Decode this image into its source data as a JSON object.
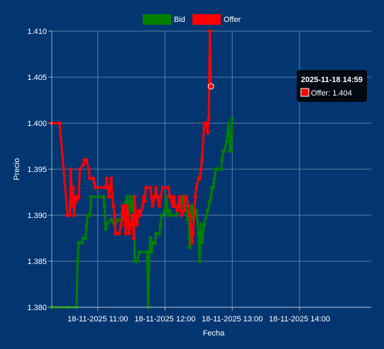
{
  "chart_data": {
    "type": "line",
    "xlabel": "Fecha",
    "ylabel": "Precio",
    "ylim": [
      1.38,
      1.41
    ],
    "yticks": [
      "1.380",
      "1.385",
      "1.390",
      "1.395",
      "1.400",
      "1.405",
      "1.410"
    ],
    "xrange": [
      "10:19",
      "15:04"
    ],
    "xticks": [
      {
        "time": "11:00",
        "label": "18-11-2025 11:00"
      },
      {
        "time": "12:00",
        "label": "18-11-2025 12:00"
      },
      {
        "time": "13:00",
        "label": "18-11-2025 13:00"
      },
      {
        "time": "14:00",
        "label": "18-11-2025 14:00"
      }
    ],
    "legend": {
      "position": "top"
    },
    "grid": true,
    "series": [
      {
        "name": "Bid",
        "color": "#008000",
        "points": [
          [
            "10:19",
            1.38
          ],
          [
            "10:33",
            1.38
          ],
          [
            "10:41",
            1.38
          ],
          [
            "10:42",
            1.385
          ],
          [
            "10:43",
            1.387
          ],
          [
            "10:46",
            1.387
          ],
          [
            "10:47",
            1.3875
          ],
          [
            "10:49",
            1.3875
          ],
          [
            "10:50",
            1.389
          ],
          [
            "10:51",
            1.39
          ],
          [
            "10:53",
            1.39
          ],
          [
            "10:54",
            1.392
          ],
          [
            "11:05",
            1.392
          ],
          [
            "11:06",
            1.391
          ],
          [
            "11:07",
            1.3885
          ],
          [
            "11:08",
            1.389
          ],
          [
            "11:12",
            1.3895
          ],
          [
            "11:15",
            1.389
          ],
          [
            "11:18",
            1.3895
          ],
          [
            "11:22",
            1.3895
          ],
          [
            "11:24",
            1.391
          ],
          [
            "11:26",
            1.392
          ],
          [
            "11:27",
            1.391
          ],
          [
            "11:28",
            1.39
          ],
          [
            "11:29",
            1.392
          ],
          [
            "11:31",
            1.3905
          ],
          [
            "11:32",
            1.392
          ],
          [
            "11:33",
            1.385
          ],
          [
            "11:35",
            1.385
          ],
          [
            "11:37",
            1.386
          ],
          [
            "11:44",
            1.386
          ],
          [
            "11:45",
            1.38
          ],
          [
            "11:46",
            1.386
          ],
          [
            "11:47",
            1.3875
          ],
          [
            "11:48",
            1.386
          ],
          [
            "11:49",
            1.387
          ],
          [
            "11:51",
            1.387
          ],
          [
            "11:52",
            1.388
          ],
          [
            "11:55",
            1.388
          ],
          [
            "11:56",
            1.389
          ],
          [
            "11:57",
            1.39
          ],
          [
            "11:58",
            1.39
          ],
          [
            "12:00",
            1.3905
          ],
          [
            "12:01",
            1.392
          ],
          [
            "12:02",
            1.3905
          ],
          [
            "12:03",
            1.39
          ],
          [
            "12:04",
            1.3905
          ],
          [
            "12:05",
            1.39
          ],
          [
            "12:10",
            1.39
          ],
          [
            "12:11",
            1.3905
          ],
          [
            "12:13",
            1.391
          ],
          [
            "12:14",
            1.391
          ],
          [
            "12:15",
            1.392
          ],
          [
            "12:16",
            1.392
          ],
          [
            "12:17",
            1.3905
          ],
          [
            "12:18",
            1.391
          ],
          [
            "12:19",
            1.3905
          ],
          [
            "12:20",
            1.3895
          ],
          [
            "12:21",
            1.3905
          ],
          [
            "12:22",
            1.3865
          ],
          [
            "12:23",
            1.3905
          ],
          [
            "12:24",
            1.391
          ],
          [
            "12:25",
            1.3895
          ],
          [
            "12:26",
            1.3905
          ],
          [
            "12:27",
            1.39
          ],
          [
            "12:28",
            1.3905
          ],
          [
            "12:30",
            1.388
          ],
          [
            "12:31",
            1.385
          ],
          [
            "12:32",
            1.389
          ],
          [
            "12:33",
            1.387
          ],
          [
            "12:35",
            1.389
          ],
          [
            "12:37",
            1.39
          ],
          [
            "12:38",
            1.3905
          ],
          [
            "12:40",
            1.3915
          ],
          [
            "12:41",
            1.392
          ],
          [
            "12:42",
            1.393
          ],
          [
            "12:43",
            1.393
          ],
          [
            "12:44",
            1.394
          ],
          [
            "12:45",
            1.395
          ],
          [
            "12:46",
            1.395
          ],
          [
            "12:50",
            1.395
          ],
          [
            "12:51",
            1.396
          ],
          [
            "12:52",
            1.397
          ],
          [
            "12:53",
            1.397
          ],
          [
            "12:55",
            1.398
          ],
          [
            "12:56",
            1.399
          ],
          [
            "12:57",
            1.4
          ],
          [
            "12:58",
            1.397
          ],
          [
            "12:59",
            1.397
          ],
          [
            "13:00",
            1.4005
          ]
        ]
      },
      {
        "name": "Offer",
        "color": "#ff0000",
        "points": [
          [
            "10:19",
            1.4
          ],
          [
            "10:26",
            1.4
          ],
          [
            "10:33",
            1.39
          ],
          [
            "10:35",
            1.39
          ],
          [
            "10:36",
            1.395
          ],
          [
            "10:37",
            1.391
          ],
          [
            "10:38",
            1.393
          ],
          [
            "10:39",
            1.39
          ],
          [
            "10:40",
            1.392
          ],
          [
            "10:41",
            1.3915
          ],
          [
            "10:43",
            1.392
          ],
          [
            "10:44",
            1.395
          ],
          [
            "10:47",
            1.3955
          ],
          [
            "10:48",
            1.396
          ],
          [
            "10:50",
            1.396
          ],
          [
            "10:52",
            1.395
          ],
          [
            "10:53",
            1.394
          ],
          [
            "10:56",
            1.394
          ],
          [
            "10:57",
            1.3935
          ],
          [
            "10:58",
            1.393
          ],
          [
            "11:07",
            1.393
          ],
          [
            "11:08",
            1.394
          ],
          [
            "11:09",
            1.393
          ],
          [
            "11:10",
            1.392
          ],
          [
            "11:11",
            1.393
          ],
          [
            "11:12",
            1.394
          ],
          [
            "11:13",
            1.392
          ],
          [
            "11:14",
            1.391
          ],
          [
            "11:15",
            1.39
          ],
          [
            "11:16",
            1.388
          ],
          [
            "11:19",
            1.388
          ],
          [
            "11:21",
            1.389
          ],
          [
            "11:22",
            1.391
          ],
          [
            "11:23",
            1.391
          ],
          [
            "11:24",
            1.39
          ],
          [
            "11:25",
            1.388
          ],
          [
            "11:26",
            1.391
          ],
          [
            "11:27",
            1.39
          ],
          [
            "11:28",
            1.388
          ],
          [
            "11:29",
            1.389
          ],
          [
            "11:31",
            1.39
          ],
          [
            "11:32",
            1.3875
          ],
          [
            "11:33",
            1.392
          ],
          [
            "11:34",
            1.39
          ],
          [
            "11:35",
            1.389
          ],
          [
            "11:36",
            1.39
          ],
          [
            "11:37",
            1.3905
          ],
          [
            "11:38",
            1.39
          ],
          [
            "11:40",
            1.391
          ],
          [
            "11:41",
            1.392
          ],
          [
            "11:42",
            1.3915
          ],
          [
            "11:43",
            1.393
          ],
          [
            "11:47",
            1.393
          ],
          [
            "11:48",
            1.392
          ],
          [
            "11:49",
            1.391
          ],
          [
            "11:51",
            1.392
          ],
          [
            "11:52",
            1.393
          ],
          [
            "11:53",
            1.392
          ],
          [
            "11:55",
            1.391
          ],
          [
            "11:56",
            1.392
          ],
          [
            "11:58",
            1.393
          ],
          [
            "12:03",
            1.393
          ],
          [
            "12:04",
            1.392
          ],
          [
            "12:05",
            1.392
          ],
          [
            "12:06",
            1.3915
          ],
          [
            "12:07",
            1.391
          ],
          [
            "12:08",
            1.392
          ],
          [
            "12:09",
            1.391
          ],
          [
            "12:11",
            1.3905
          ],
          [
            "12:12",
            1.391
          ],
          [
            "12:13",
            1.392
          ],
          [
            "12:14",
            1.391
          ],
          [
            "12:15",
            1.39
          ],
          [
            "12:17",
            1.3905
          ],
          [
            "12:18",
            1.392
          ],
          [
            "12:19",
            1.392
          ],
          [
            "12:21",
            1.391
          ],
          [
            "12:22",
            1.39
          ],
          [
            "12:23",
            1.389
          ],
          [
            "12:24",
            1.387
          ],
          [
            "12:25",
            1.388
          ],
          [
            "12:27",
            1.392
          ],
          [
            "12:28",
            1.393
          ],
          [
            "12:30",
            1.394
          ],
          [
            "12:31",
            1.394
          ],
          [
            "12:32",
            1.395
          ],
          [
            "12:33",
            1.396
          ],
          [
            "12:35",
            1.4
          ],
          [
            "12:37",
            1.4
          ],
          [
            "12:38",
            1.399
          ],
          [
            "12:39",
            1.4005
          ],
          [
            "12:40",
            1.41
          ],
          [
            "12:41",
            1.404
          ]
        ]
      }
    ],
    "tooltip": {
      "title": "2025-11-18 14:59",
      "series": "Offer",
      "label": "Offer: 1.404",
      "color": "#ff0000"
    }
  }
}
